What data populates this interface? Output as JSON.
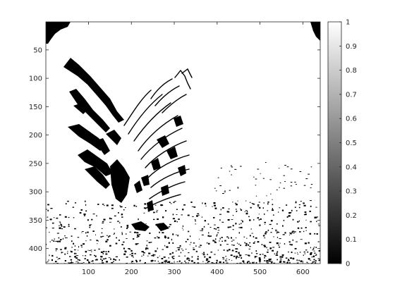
{
  "chart_data": {
    "type": "heatmap",
    "title": "",
    "xlabel": "",
    "ylabel": "",
    "xlim": [
      0.5,
      640.5
    ],
    "ylim": [
      0.5,
      426.5
    ],
    "y_reversed": true,
    "xticks": [
      100,
      200,
      300,
      400,
      500,
      600
    ],
    "xtick_labels": [
      "100",
      "200",
      "300",
      "400",
      "500",
      "600"
    ],
    "yticks": [
      50,
      100,
      150,
      200,
      250,
      300,
      350,
      400
    ],
    "ytick_labels": [
      "50",
      "100",
      "150",
      "200",
      "250",
      "300",
      "350",
      "400"
    ],
    "colormap": "gray",
    "clim": [
      0,
      1
    ],
    "colorbar": {
      "location": "right",
      "ticks": [
        0,
        0.1,
        0.2,
        0.3,
        0.4,
        0.5,
        0.6,
        0.7,
        0.8,
        0.9,
        1
      ],
      "tick_labels": [
        "0",
        "0.1",
        "0.2",
        "0.3",
        "0.4",
        "0.5",
        "0.6",
        "0.7",
        "0.8",
        "0.9",
        "1"
      ]
    },
    "image_content": "binary black-and-white image of a rooster",
    "colors": {
      "black": "#000000",
      "white": "#ffffff",
      "axis": "#262626"
    }
  }
}
